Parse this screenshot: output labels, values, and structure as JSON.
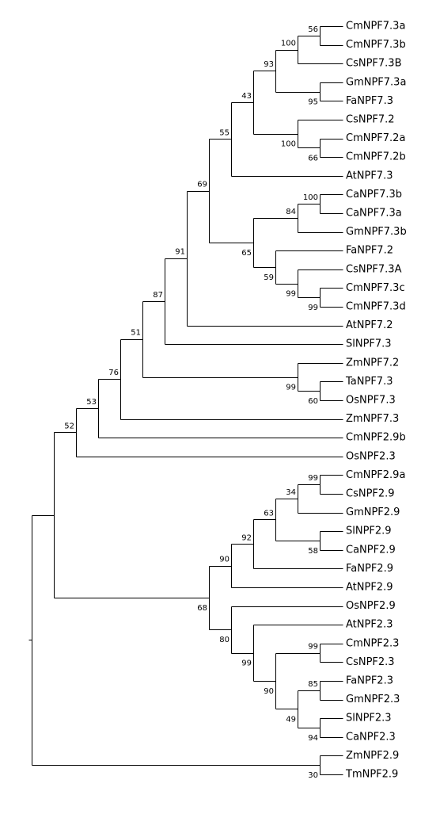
{
  "tree": {
    "leaves": [
      "CmNPF7.3a",
      "CmNPF7.3b",
      "CsNPF7.3B",
      "GmNPF7.3a",
      "FaNPF7.3",
      "CsNPF7.2",
      "CmNPF7.2a",
      "CmNPF7.2b",
      "AtNPF7.3",
      "CaNPF7.3b",
      "CaNPF7.3a",
      "GmNPF7.3b",
      "FaNPF7.2",
      "CsNPF7.3A",
      "CmNPF7.3c",
      "CmNPF7.3d",
      "AtNPF7.2",
      "SlNPF7.3",
      "ZmNPF7.2",
      "TaNPF7.3",
      "OsNPF7.3",
      "ZmNPF7.3",
      "CmNPF2.9b",
      "OsNPF2.3",
      "CmNPF2.9a",
      "CsNPF2.9",
      "GmNPF2.9",
      "SlNPF2.9",
      "CaNPF2.9",
      "FaNPF2.9",
      "AtNPF2.9",
      "OsNPF2.9",
      "AtNPF2.3",
      "CmNPF2.3",
      "CsNPF2.3",
      "FaNPF2.3",
      "GmNPF2.3",
      "SlNPF2.3",
      "CaNPF2.3",
      "ZmNPF2.9",
      "TmNPF2.9"
    ],
    "nodes": [
      {
        "id": "n_3a3b",
        "children": [
          "CmNPF7.3a",
          "CmNPF7.3b"
        ],
        "support": "56",
        "label_pos": "above"
      },
      {
        "id": "n_3B",
        "children": [
          "n_3a3b",
          "CsNPF7.3B"
        ],
        "support": "100",
        "label_pos": "above"
      },
      {
        "id": "n_gmfa",
        "children": [
          "GmNPF7.3a",
          "FaNPF7.3"
        ],
        "support": "95",
        "label_pos": "below"
      },
      {
        "id": "n_93",
        "children": [
          "n_3B",
          "n_gmfa"
        ],
        "support": "93",
        "label_pos": "above"
      },
      {
        "id": "n_2a2b",
        "children": [
          "CmNPF7.2a",
          "CmNPF7.2b"
        ],
        "support": "66",
        "label_pos": "below"
      },
      {
        "id": "n_cs72",
        "children": [
          "CsNPF7.2",
          "n_2a2b"
        ],
        "support": "100",
        "label_pos": "below"
      },
      {
        "id": "n_43",
        "children": [
          "n_93",
          "n_cs72"
        ],
        "support": "43",
        "label_pos": "above"
      },
      {
        "id": "n_55",
        "children": [
          "n_43",
          "AtNPF7.3"
        ],
        "support": "55",
        "label_pos": "above"
      },
      {
        "id": "n_ca",
        "children": [
          "CaNPF7.3b",
          "CaNPF7.3a"
        ],
        "support": "100",
        "label_pos": "above"
      },
      {
        "id": "n_84",
        "children": [
          "n_ca",
          "GmNPF7.3b"
        ],
        "support": "84",
        "label_pos": "above"
      },
      {
        "id": "n_3c3d",
        "children": [
          "CmNPF7.3c",
          "CmNPF7.3d"
        ],
        "support": "99",
        "label_pos": "below"
      },
      {
        "id": "n_99b",
        "children": [
          "CsNPF7.3A",
          "n_3c3d"
        ],
        "support": "99",
        "label_pos": "below"
      },
      {
        "id": "n_59",
        "children": [
          "FaNPF7.2",
          "n_99b"
        ],
        "support": "59",
        "label_pos": "below"
      },
      {
        "id": "n_65",
        "children": [
          "n_84",
          "n_59"
        ],
        "support": "65",
        "label_pos": "below"
      },
      {
        "id": "n_69",
        "children": [
          "n_55",
          "n_65"
        ],
        "support": "69",
        "label_pos": "above"
      },
      {
        "id": "n_91",
        "children": [
          "n_69",
          "AtNPF7.2"
        ],
        "support": "91",
        "label_pos": "above"
      },
      {
        "id": "n_87",
        "children": [
          "n_91",
          "SlNPF7.3"
        ],
        "support": "87",
        "label_pos": "above"
      },
      {
        "id": "n_taos",
        "children": [
          "TaNPF7.3",
          "OsNPF7.3"
        ],
        "support": "60",
        "label_pos": "below"
      },
      {
        "id": "n_zm72",
        "children": [
          "ZmNPF7.2",
          "n_taos"
        ],
        "support": "99",
        "label_pos": "below"
      },
      {
        "id": "n_51",
        "children": [
          "n_87",
          "n_zm72"
        ],
        "support": "51",
        "label_pos": "above"
      },
      {
        "id": "n_76",
        "children": [
          "n_51",
          "ZmNPF7.3"
        ],
        "support": "76",
        "label_pos": "above"
      },
      {
        "id": "n_53",
        "children": [
          "n_76",
          "CmNPF2.9b"
        ],
        "support": "53",
        "label_pos": "above"
      },
      {
        "id": "n_52",
        "children": [
          "n_53",
          "OsNPF2.3"
        ],
        "support": "52",
        "label_pos": "above"
      },
      {
        "id": "n_cmcs29",
        "children": [
          "CmNPF2.9a",
          "CsNPF2.9"
        ],
        "support": "99",
        "label_pos": "above"
      },
      {
        "id": "n_34",
        "children": [
          "n_cmcs29",
          "GmNPF2.9"
        ],
        "support": "34",
        "label_pos": "above"
      },
      {
        "id": "n_slca29",
        "children": [
          "SlNPF2.9",
          "CaNPF2.9"
        ],
        "support": "58",
        "label_pos": "below"
      },
      {
        "id": "n_63",
        "children": [
          "n_34",
          "n_slca29"
        ],
        "support": "63",
        "label_pos": "above"
      },
      {
        "id": "n_92",
        "children": [
          "n_63",
          "FaNPF2.9"
        ],
        "support": "92",
        "label_pos": "above"
      },
      {
        "id": "n_90a",
        "children": [
          "n_92",
          "AtNPF2.9"
        ],
        "support": "90",
        "label_pos": "above"
      },
      {
        "id": "n_cmcs23",
        "children": [
          "CmNPF2.3",
          "CsNPF2.3"
        ],
        "support": "99",
        "label_pos": "above"
      },
      {
        "id": "n_fagm23",
        "children": [
          "FaNPF2.3",
          "GmNPF2.3"
        ],
        "support": "85",
        "label_pos": "above"
      },
      {
        "id": "n_slca23",
        "children": [
          "SlNPF2.3",
          "CaNPF2.3"
        ],
        "support": "94",
        "label_pos": "below"
      },
      {
        "id": "n_49",
        "children": [
          "n_fagm23",
          "n_slca23"
        ],
        "support": "49",
        "label_pos": "below"
      },
      {
        "id": "n_90b",
        "children": [
          "n_cmcs23",
          "n_49"
        ],
        "support": "90",
        "label_pos": "below"
      },
      {
        "id": "n_at23",
        "children": [
          "AtNPF2.3",
          "n_90b"
        ],
        "support": "99",
        "label_pos": "below"
      },
      {
        "id": "n_os29",
        "children": [
          "OsNPF2.9",
          "n_at23"
        ],
        "support": "80",
        "label_pos": "below"
      },
      {
        "id": "n_68",
        "children": [
          "n_90a",
          "n_os29"
        ],
        "support": "68",
        "label_pos": "below"
      },
      {
        "id": "n_big",
        "children": [
          "n_52",
          "n_68"
        ],
        "support": "",
        "label_pos": "above"
      },
      {
        "id": "n_zmtm",
        "children": [
          "ZmNPF2.9",
          "TmNPF2.9"
        ],
        "support": "30",
        "label_pos": "below"
      },
      {
        "id": "root",
        "children": [
          "n_big",
          "n_zmtm"
        ],
        "support": "",
        "label_pos": "above"
      }
    ]
  }
}
